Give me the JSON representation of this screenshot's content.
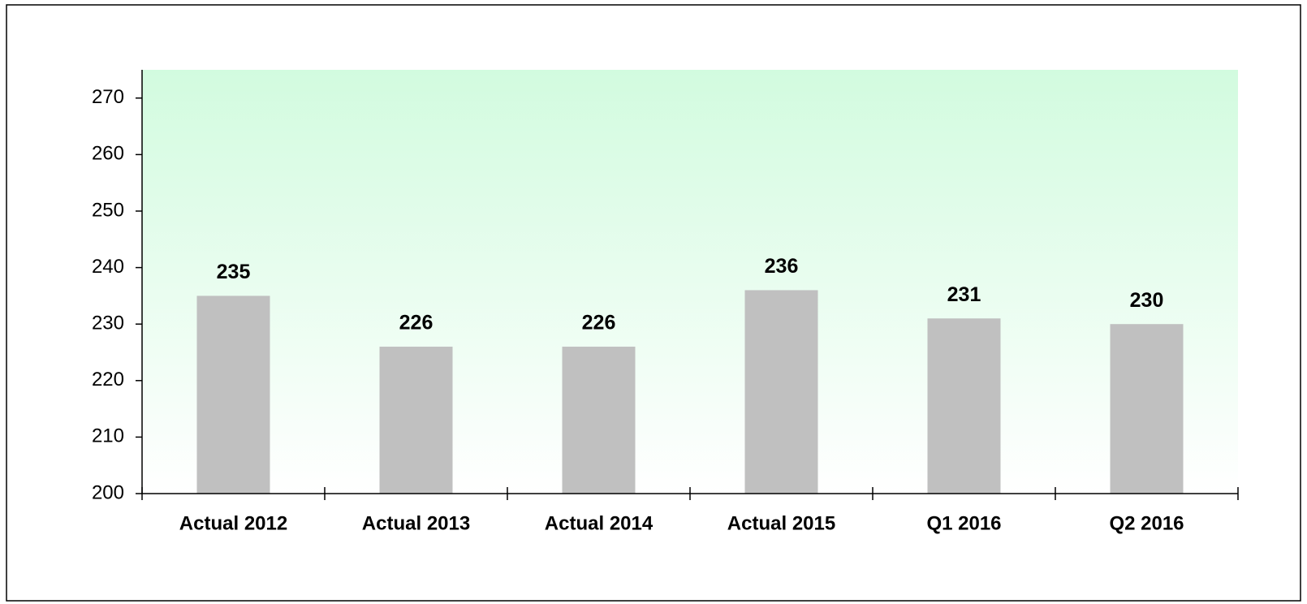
{
  "chart_data": {
    "type": "bar",
    "categories": [
      "Actual 2012",
      "Actual 2013",
      "Actual 2014",
      "Actual 2015",
      "Q1 2016",
      "Q2 2016"
    ],
    "values": [
      235,
      226,
      226,
      236,
      231,
      230
    ],
    "color": "#c0c0c0",
    "ylim": [
      200,
      275
    ],
    "yticks": [
      200,
      210,
      220,
      230,
      240,
      250,
      260,
      270
    ],
    "grid": false
  }
}
